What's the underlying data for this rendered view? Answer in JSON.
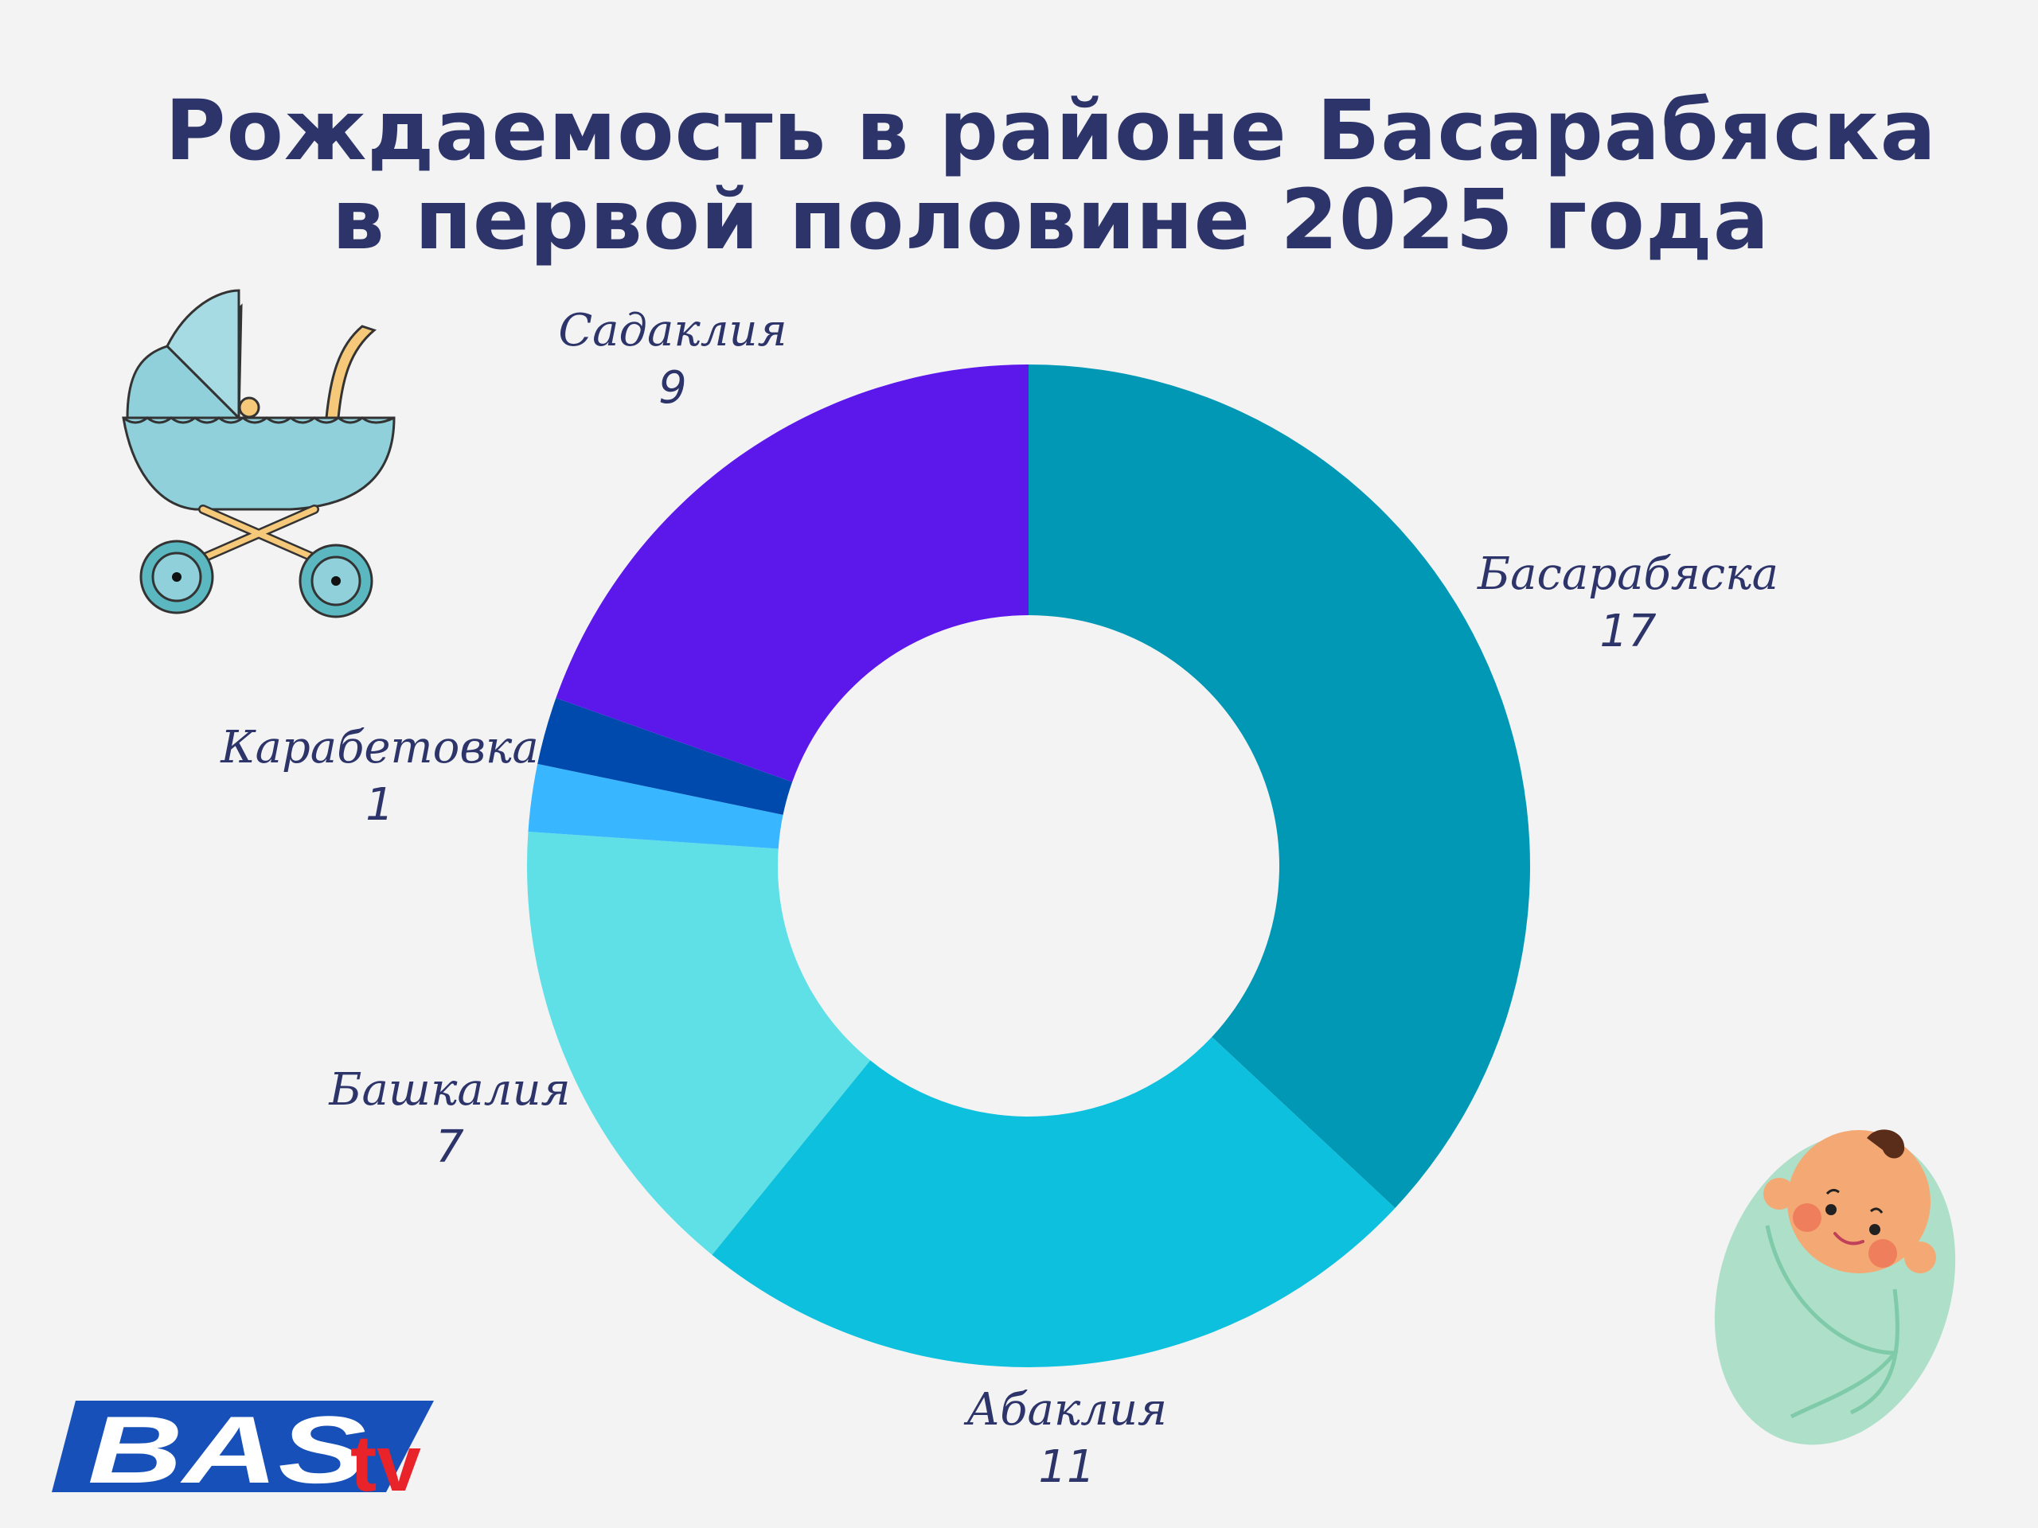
{
  "title": {
    "line1": "Рождаемость в районе Басарабяска",
    "line2": "в первой половине 2025 года"
  },
  "chart_data": {
    "type": "pie",
    "donut": true,
    "slices": [
      {
        "label": "Басарабяска",
        "value": 17,
        "color": "#0098b4"
      },
      {
        "label": "Абаклия",
        "value": 11,
        "color": "#0dc0de"
      },
      {
        "label": "Башкалия",
        "value": 7,
        "color": "#5ee0e6"
      },
      {
        "label": "Карабетовка",
        "value": 1,
        "color": "#38b6ff"
      },
      {
        "label": "Карабетовка",
        "value": 1,
        "color": "#004aad"
      },
      {
        "label": "Садаклия",
        "value": 9,
        "color": "#5c17eb"
      }
    ],
    "labels_shown": [
      {
        "label": "Садаклия",
        "value": "9"
      },
      {
        "label": "Басарабяска",
        "value": "17"
      },
      {
        "label": "Карабетовка",
        "value": "1"
      },
      {
        "label": "Башкалия",
        "value": "7"
      },
      {
        "label": "Абаклия",
        "value": "11"
      }
    ]
  },
  "logo": {
    "text": "BASTV",
    "colors": {
      "blue": "#1650b8",
      "red": "#e8242a"
    }
  },
  "colors": {
    "title": "#2d3469",
    "background": "#f3f3f4"
  },
  "icons": [
    "baby-stroller-icon",
    "swaddled-baby-icon"
  ]
}
